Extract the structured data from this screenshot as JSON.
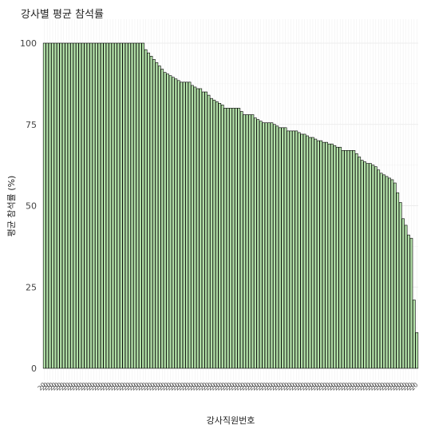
{
  "chart_data": {
    "type": "bar",
    "title": "강사별 평균 참석률",
    "xlabel": "강사직원번호",
    "ylabel": "평균 참석률 (%)",
    "ylim": [
      0,
      100
    ],
    "yticks": [
      0,
      25,
      50,
      75,
      100
    ],
    "grid": true,
    "legend": "none",
    "bar_fill": "#b2e0a8",
    "bar_stroke": "#000000",
    "x_tick_label_text": "20",
    "values": [
      100,
      100,
      100,
      100,
      100,
      100,
      100,
      100,
      100,
      100,
      100,
      100,
      100,
      100,
      100,
      100,
      100,
      100,
      100,
      100,
      100,
      100,
      100,
      100,
      100,
      100,
      100,
      100,
      100,
      100,
      100,
      100,
      100,
      100,
      100,
      100,
      100,
      98,
      97,
      96,
      95,
      94,
      93,
      92,
      91,
      90.5,
      90,
      89.5,
      89,
      88.5,
      88,
      88,
      88,
      88,
      87,
      86.5,
      86,
      86,
      85,
      85,
      84,
      83,
      82.5,
      82,
      81.5,
      81,
      80,
      80,
      80,
      80,
      80,
      80,
      79,
      78,
      78,
      78,
      78,
      77,
      76.5,
      76,
      75.5,
      75.5,
      75.5,
      75.5,
      75,
      74.5,
      74,
      74,
      74,
      73,
      73,
      73,
      73,
      72.5,
      72,
      72,
      71.5,
      71,
      71,
      70.5,
      70,
      70,
      69.5,
      69.5,
      69,
      69,
      68.5,
      68,
      68,
      67,
      67,
      67,
      67,
      67,
      66,
      65,
      64,
      63.5,
      63,
      63,
      62.5,
      62,
      61,
      60,
      59.5,
      59,
      58.5,
      58,
      57,
      54,
      51,
      46,
      44,
      41,
      40,
      21,
      11
    ]
  }
}
